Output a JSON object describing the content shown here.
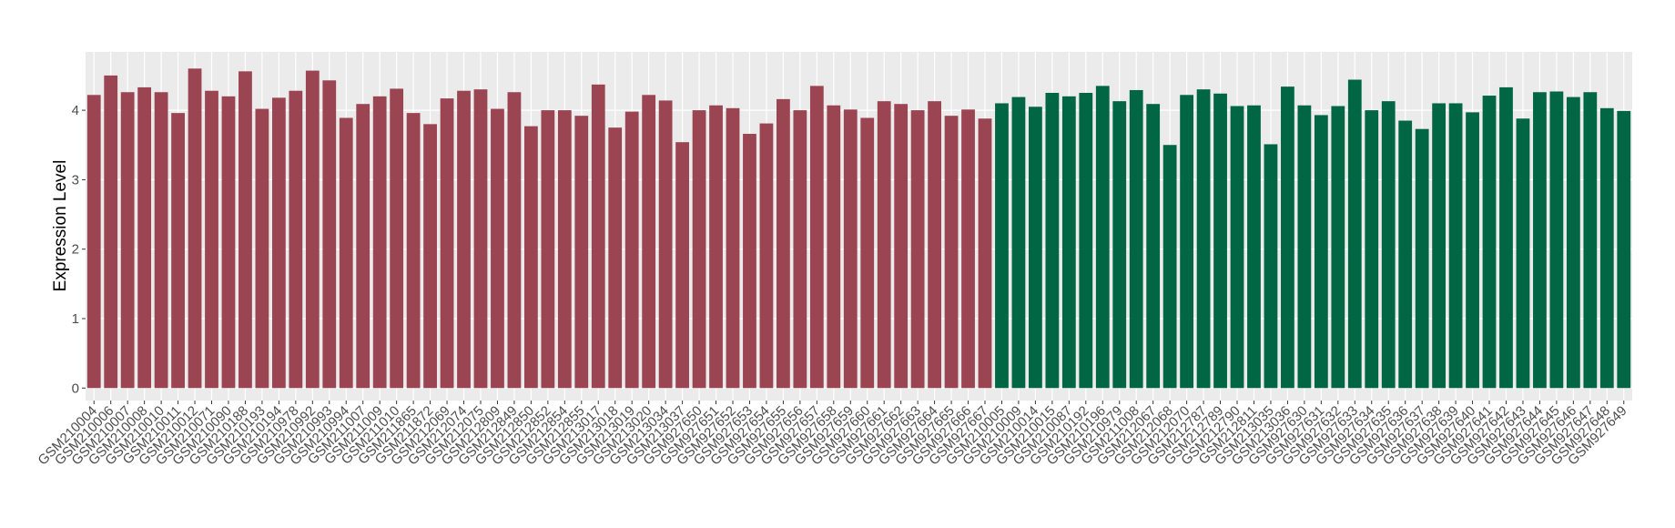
{
  "chart_data": {
    "type": "bar",
    "y_label": "Expression Level",
    "categories": [
      "GSM210004",
      "GSM210006",
      "GSM210007",
      "GSM210008",
      "GSM210010",
      "GSM210011",
      "GSM210012",
      "GSM210071",
      "GSM210090",
      "GSM210188",
      "GSM210193",
      "GSM210194",
      "GSM210978",
      "GSM210992",
      "GSM210993",
      "GSM210994",
      "GSM211007",
      "GSM211009",
      "GSM211010",
      "GSM211865",
      "GSM211872",
      "GSM212069",
      "GSM212074",
      "GSM212075",
      "GSM212809",
      "GSM212849",
      "GSM212850",
      "GSM212852",
      "GSM212854",
      "GSM212855",
      "GSM213017",
      "GSM213018",
      "GSM213019",
      "GSM213020",
      "GSM213034",
      "GSM213037",
      "GSM927650",
      "GSM927651",
      "GSM927652",
      "GSM927653",
      "GSM927654",
      "GSM927655",
      "GSM927656",
      "GSM927657",
      "GSM927658",
      "GSM927659",
      "GSM927660",
      "GSM927661",
      "GSM927662",
      "GSM927663",
      "GSM927664",
      "GSM927665",
      "GSM927666",
      "GSM927667",
      "GSM210005",
      "GSM210009",
      "GSM210014",
      "GSM210015",
      "GSM210087",
      "GSM210192",
      "GSM210196",
      "GSM210979",
      "GSM211008",
      "GSM212067",
      "GSM212068",
      "GSM212070",
      "GSM212787",
      "GSM212789",
      "GSM212790",
      "GSM212811",
      "GSM213035",
      "GSM213036",
      "GSM927630",
      "GSM927631",
      "GSM927632",
      "GSM927633",
      "GSM927634",
      "GSM927635",
      "GSM927636",
      "GSM927637",
      "GSM927638",
      "GSM927639",
      "GSM927640",
      "GSM927641",
      "GSM927642",
      "GSM927643",
      "GSM927644",
      "GSM927645",
      "GSM927646",
      "GSM927647",
      "GSM927648",
      "GSM927649"
    ],
    "series": [
      {
        "color": "#9b4452",
        "values": [
          4.22,
          4.5,
          4.26,
          4.33,
          4.26,
          3.96,
          4.6,
          4.28,
          4.2,
          4.56,
          4.02,
          4.18,
          4.28,
          4.57,
          4.43,
          3.89,
          4.09,
          4.2,
          4.31,
          3.96,
          3.8,
          4.17,
          4.28,
          4.3,
          4.02,
          4.26,
          3.77,
          4.0,
          4.0,
          3.92,
          4.37,
          3.75,
          3.98,
          4.22,
          4.14,
          3.54,
          4.0,
          4.07,
          4.03,
          3.66,
          3.81,
          4.16,
          4.0,
          4.35,
          4.07,
          4.01,
          3.89,
          4.13,
          4.09,
          4.0,
          4.13,
          3.92,
          4.01,
          3.88,
          null,
          null,
          null,
          null,
          null,
          null,
          null,
          null,
          null,
          null,
          null,
          null,
          null,
          null,
          null,
          null,
          null,
          null,
          null,
          null,
          null,
          null,
          null,
          null,
          null,
          null,
          null,
          null,
          null,
          null,
          null,
          null,
          null,
          null,
          null,
          null,
          null,
          null
        ]
      },
      {
        "color": "#006644",
        "values": [
          null,
          null,
          null,
          null,
          null,
          null,
          null,
          null,
          null,
          null,
          null,
          null,
          null,
          null,
          null,
          null,
          null,
          null,
          null,
          null,
          null,
          null,
          null,
          null,
          null,
          null,
          null,
          null,
          null,
          null,
          null,
          null,
          null,
          null,
          null,
          null,
          null,
          null,
          null,
          null,
          null,
          null,
          null,
          null,
          null,
          null,
          null,
          null,
          null,
          null,
          null,
          null,
          null,
          null,
          4.1,
          4.19,
          4.05,
          4.25,
          4.2,
          4.25,
          4.35,
          4.13,
          4.29,
          4.09,
          3.5,
          4.22,
          4.3,
          4.24,
          4.06,
          4.07,
          3.51,
          4.34,
          4.07,
          3.93,
          4.06,
          4.44,
          4.0,
          4.13,
          3.85,
          3.73,
          4.1,
          4.1,
          3.97,
          4.21,
          4.33,
          3.88,
          4.26,
          4.27,
          4.19,
          4.26,
          4.03,
          3.99
        ]
      }
    ],
    "ylim": [
      -0.18,
      4.84
    ],
    "yticks": [
      0,
      1,
      2,
      3,
      4
    ],
    "grid": true
  }
}
